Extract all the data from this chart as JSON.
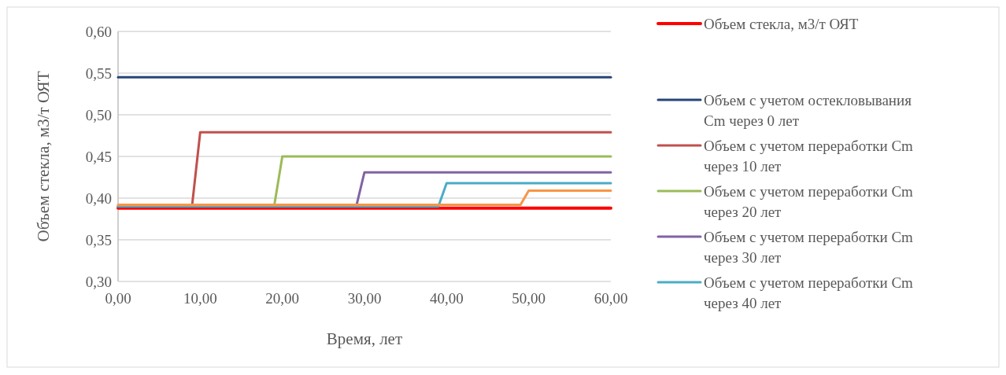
{
  "chart_data": {
    "type": "line",
    "xlabel": "Время, лет",
    "ylabel": "Объем стекла, м3/т ОЯТ",
    "xlim": [
      0,
      60
    ],
    "xticks": [
      {
        "value": 0,
        "label": "0,00"
      },
      {
        "value": 10,
        "label": "10,00"
      },
      {
        "value": 20,
        "label": "20,00"
      },
      {
        "value": 30,
        "label": "30,00"
      },
      {
        "value": 40,
        "label": "40,00"
      },
      {
        "value": 50,
        "label": "50,00"
      },
      {
        "value": 60,
        "label": "60,00"
      }
    ],
    "ylim": [
      0.3,
      0.6
    ],
    "yticks": [
      {
        "value": 0.3,
        "label": "0,30"
      },
      {
        "value": 0.35,
        "label": "0,35"
      },
      {
        "value": 0.4,
        "label": "0,40"
      },
      {
        "value": 0.45,
        "label": "0,45"
      },
      {
        "value": 0.5,
        "label": "0,50"
      },
      {
        "value": 0.55,
        "label": "0,55"
      },
      {
        "value": 0.6,
        "label": "0,60"
      }
    ],
    "grid": "y",
    "legend": "right",
    "marker": "none",
    "line_style": "solid",
    "series": [
      {
        "name": "Объем стекла, м3/т ОЯТ",
        "color": "#ff0000",
        "x": [
          0,
          60
        ],
        "values": [
          0.388,
          0.388
        ]
      },
      {
        "name": "Объем с учетом остекловывания Cm через 0 лет",
        "color": "#264478",
        "x": [
          0,
          60
        ],
        "values": [
          0.545,
          0.545
        ]
      },
      {
        "name": "Объем с учетом переработки Cm через 10 лет",
        "color": "#c0504d",
        "x": [
          0,
          9,
          10,
          60
        ],
        "values": [
          0.39,
          0.39,
          0.479,
          0.479
        ]
      },
      {
        "name": "Объем с учетом переработки Cm через 20 лет",
        "color": "#9bbb59",
        "x": [
          0,
          19,
          20,
          60
        ],
        "values": [
          0.39,
          0.39,
          0.45,
          0.45
        ]
      },
      {
        "name": "Объем с учетом переработки Cm через 30 лет",
        "color": "#8064a2",
        "x": [
          0,
          29,
          30,
          60
        ],
        "values": [
          0.39,
          0.39,
          0.431,
          0.431
        ]
      },
      {
        "name": "Объем с учетом переработки Cm через 40 лет",
        "color": "#4bacc6",
        "x": [
          0,
          39,
          40,
          60
        ],
        "values": [
          0.39,
          0.39,
          0.418,
          0.418
        ]
      },
      {
        "color": "#f79646",
        "x": [
          0,
          49,
          50,
          60
        ],
        "values": [
          0.392,
          0.392,
          0.409,
          0.409
        ]
      }
    ]
  }
}
